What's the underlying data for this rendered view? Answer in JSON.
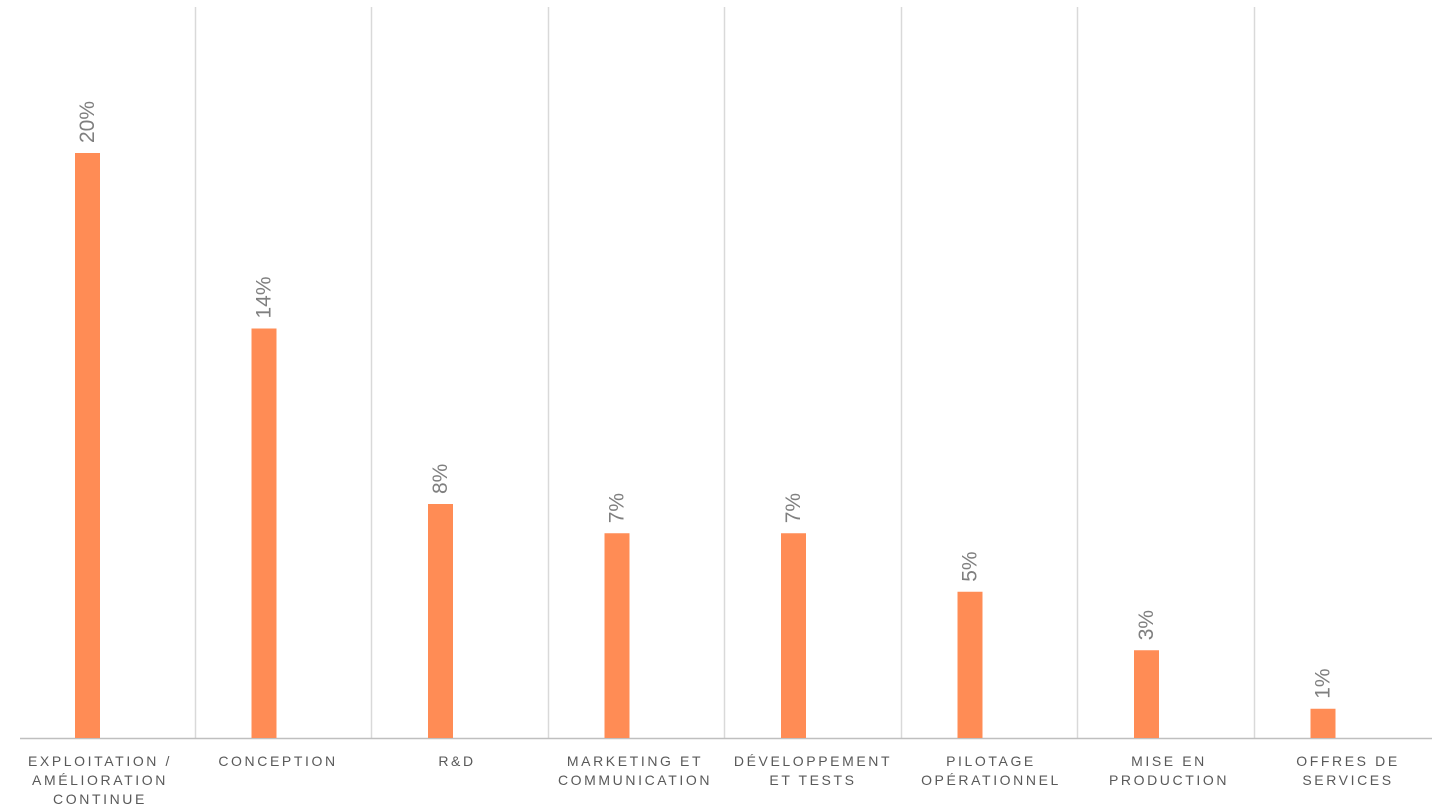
{
  "chart_data": {
    "type": "bar",
    "categories": [
      "EXPLOITATION / AMÉLIORATION CONTINUE",
      "CONCEPTION",
      "R&D",
      "MARKETING ET COMMUNICATION",
      "DÉVELOPPEMENT ET TESTS",
      "PILOTAGE OPÉRATIONNEL",
      "MISE EN PRODUCTION",
      "OFFRES DE SERVICES"
    ],
    "values": [
      20,
      14,
      8,
      7,
      7,
      5,
      3,
      1
    ],
    "data_labels": [
      "20%",
      "14%",
      "8%",
      "7%",
      "7%",
      "5%",
      "3%",
      "1%"
    ],
    "unit": "%",
    "title": "",
    "xlabel": "",
    "ylabel": "",
    "ylim": [
      0,
      25
    ],
    "grid": "vertical separators between categories",
    "legend": "none",
    "colors": {
      "bar": "#ff8c55",
      "grid": "#d9d9d9",
      "axis": "#bfbfbf",
      "label_text": "#595959",
      "data_label_text": "#7f7f7f"
    }
  }
}
